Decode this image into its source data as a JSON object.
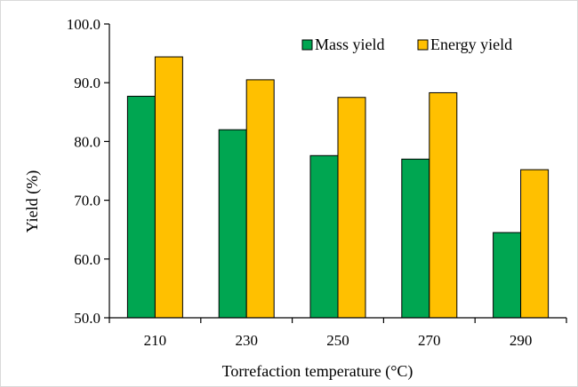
{
  "chart_data": {
    "type": "bar",
    "xlabel": "Torrefaction temperature (°C)",
    "ylabel": "Yield (%)",
    "ylim": [
      50.0,
      100.0
    ],
    "yticks": [
      "50.0",
      "60.0",
      "70.0",
      "80.0",
      "90.0",
      "100.0"
    ],
    "categories": [
      "210",
      "230",
      "250",
      "270",
      "290"
    ],
    "series": [
      {
        "name": "Mass yield",
        "color": "#00a651",
        "values": [
          87.7,
          82.0,
          77.6,
          77.0,
          64.5
        ]
      },
      {
        "name": "Energy yield",
        "color": "#ffc000",
        "values": [
          94.4,
          90.5,
          87.5,
          88.3,
          75.2
        ]
      }
    ],
    "legend": "top-right",
    "grid": false
  }
}
